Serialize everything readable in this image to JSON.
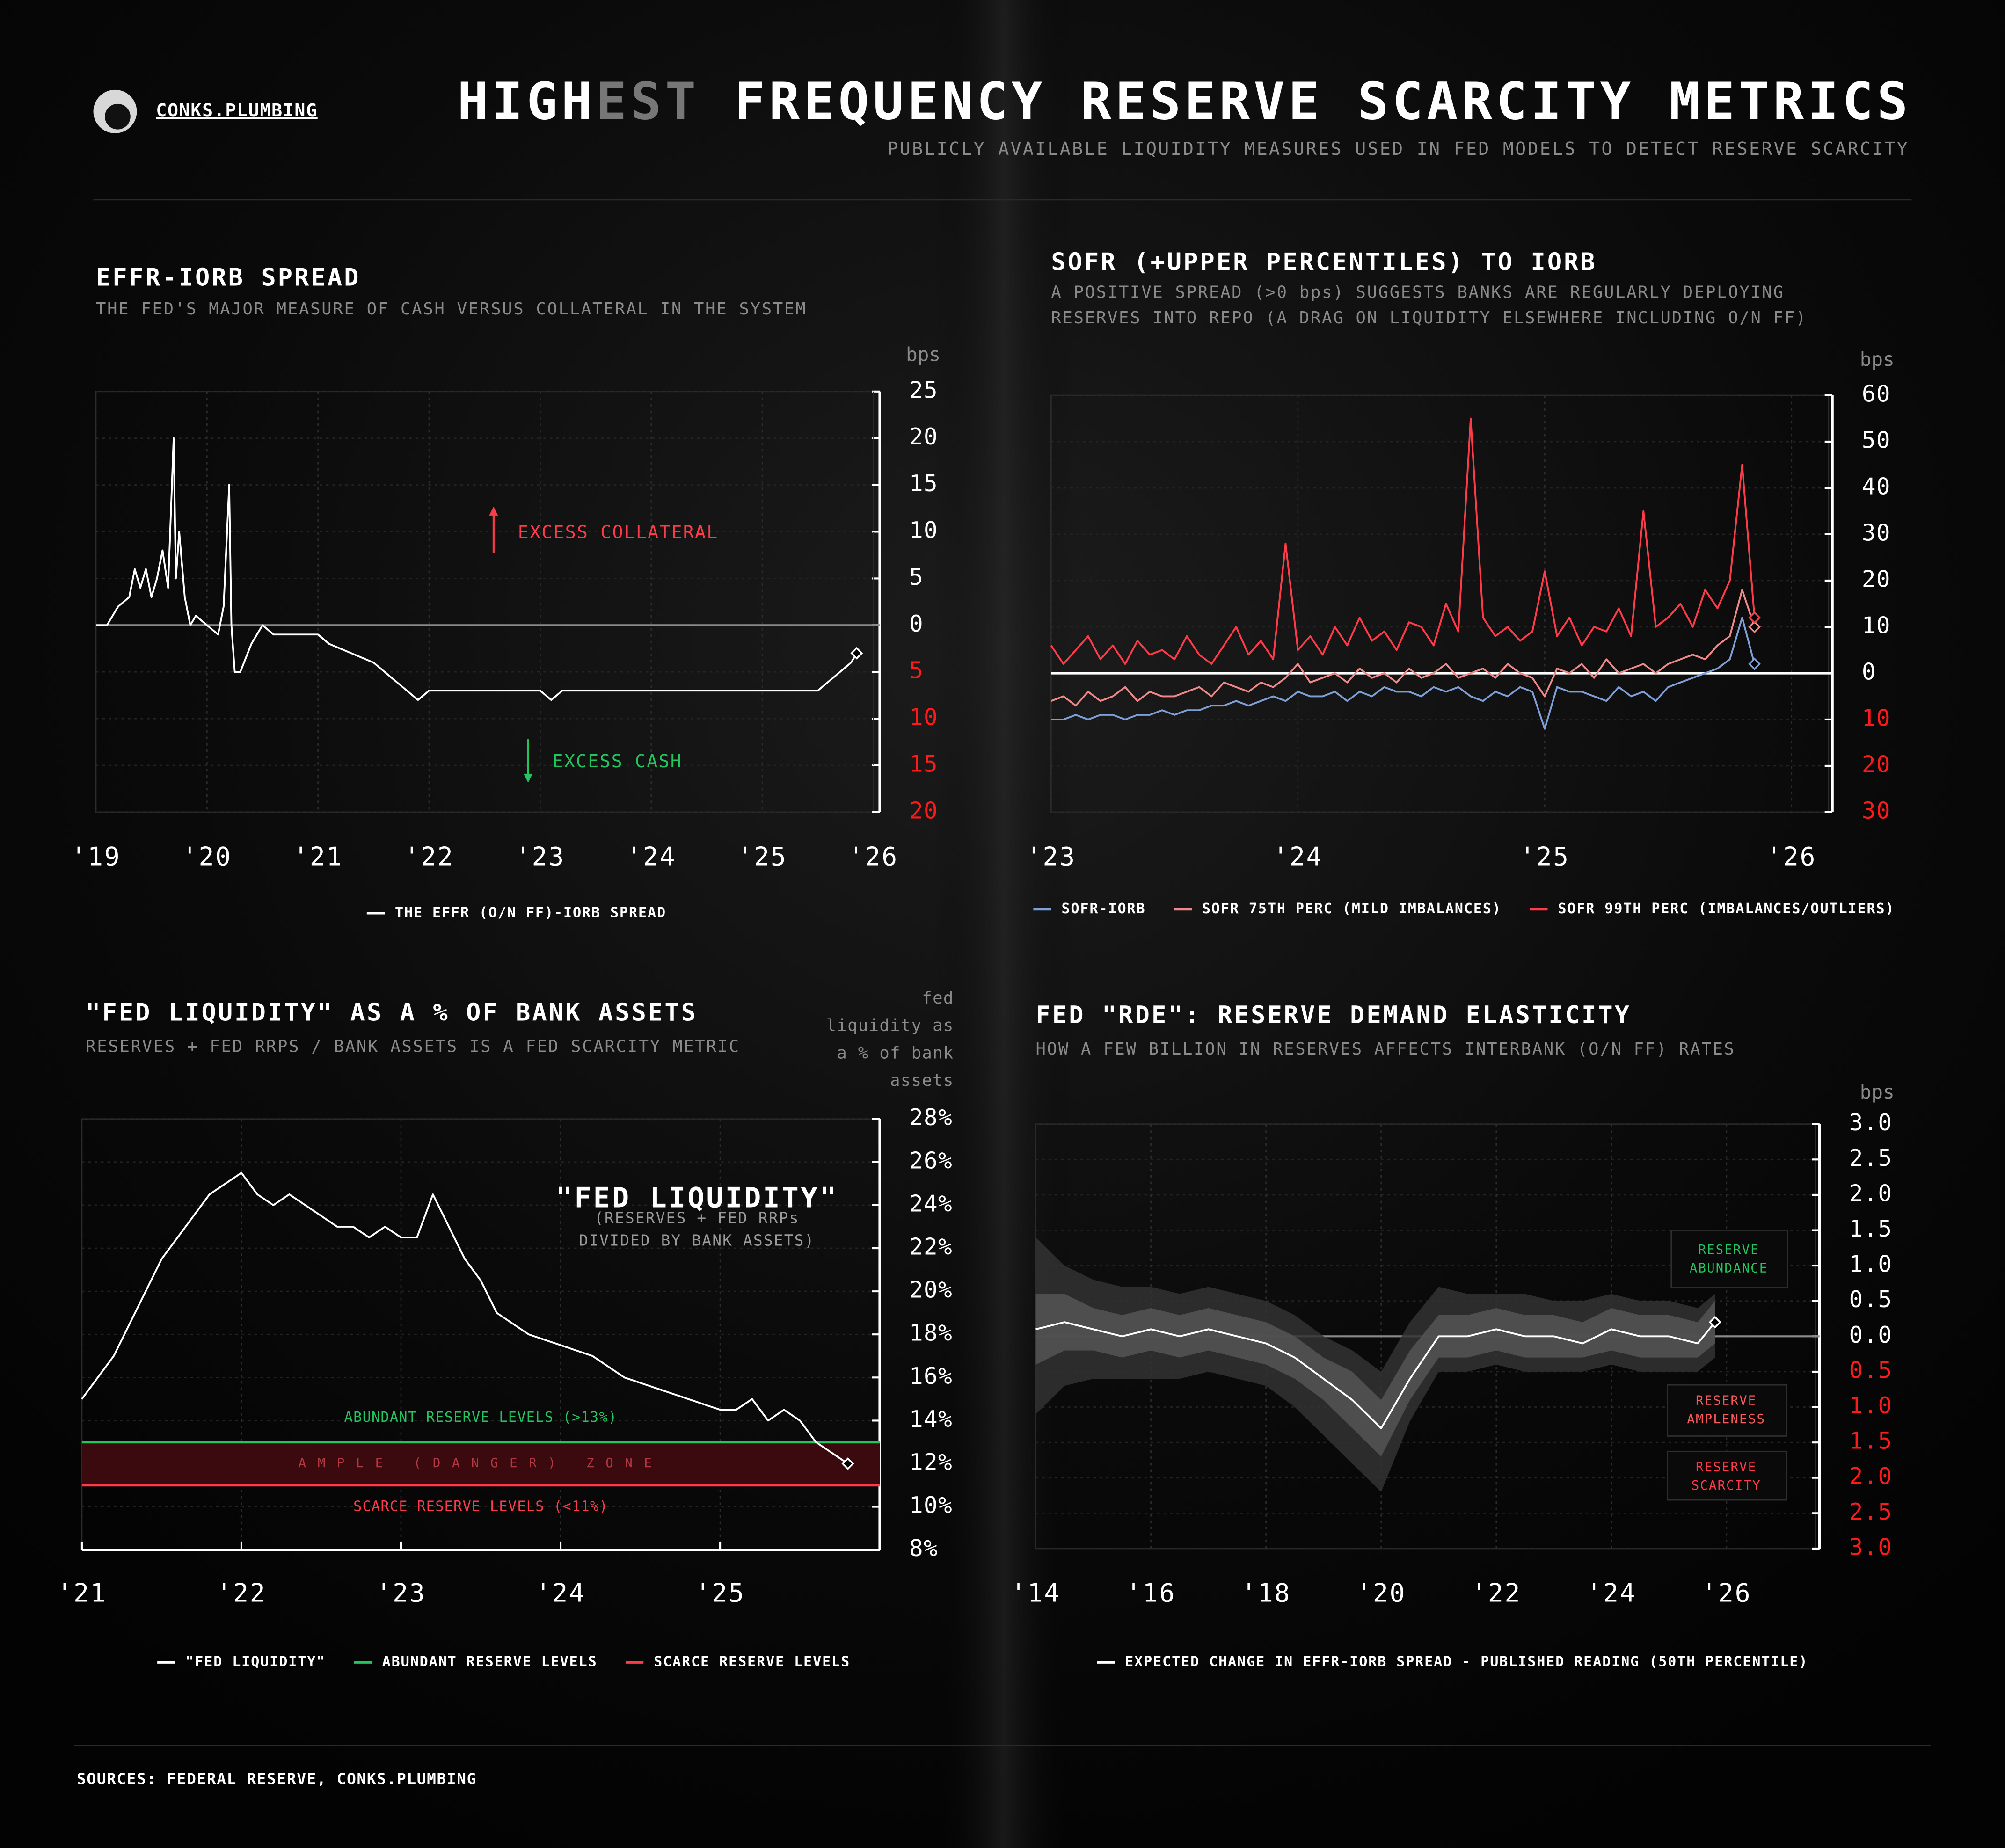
{
  "header": {
    "brand": "CONKS.PLUMBING",
    "title": [
      "HIGH",
      "EST",
      " FREQUENCY RESERVE SCARCITY METRICS"
    ],
    "title_colors": [
      "#ffffff",
      "#777777",
      "#ffffff"
    ],
    "subtitle": "PUBLICLY AVAILABLE LIQUIDITY MEASURES USED IN FED MODELS TO DETECT RESERVE SCARCITY"
  },
  "chart_data": [
    {
      "type": "line",
      "title": "EFFR-IORB SPREAD",
      "subtitle": [
        "THE FED'S MAJOR MEASURE OF CASH VERSUS COLLATERAL IN THE SYSTEM"
      ],
      "y_label": "bps",
      "x": [
        2019.0,
        2019.1,
        2019.2,
        2019.3,
        2019.35,
        2019.4,
        2019.45,
        2019.5,
        2019.55,
        2019.6,
        2019.65,
        2019.7,
        2019.72,
        2019.75,
        2019.8,
        2019.85,
        2019.9,
        2020.0,
        2020.1,
        2020.15,
        2020.2,
        2020.22,
        2020.25,
        2020.3,
        2020.4,
        2020.5,
        2020.6,
        2020.8,
        2021.0,
        2021.1,
        2021.3,
        2021.5,
        2021.6,
        2021.7,
        2021.8,
        2021.9,
        2022.0,
        2022.2,
        2022.5,
        2023.0,
        2023.1,
        2023.2,
        2023.5,
        2024.0,
        2024.5,
        2025.0,
        2025.5,
        2025.6,
        2025.7,
        2025.8,
        2025.85
      ],
      "series": [
        {
          "name": "THE EFFR (O/N FF)-IORB SPREAD",
          "color": "#ffffff",
          "values": [
            0,
            0,
            2,
            3,
            6,
            4,
            6,
            3,
            5,
            8,
            4,
            20,
            5,
            10,
            3,
            0,
            1,
            0,
            -1,
            2,
            15,
            0,
            -5,
            -5,
            -2,
            0,
            -1,
            -1,
            -1,
            -2,
            -3,
            -4,
            -5,
            -6,
            -7,
            -8,
            -7,
            -7,
            -7,
            -7,
            -8,
            -7,
            -7,
            -7,
            -7,
            -7,
            -7,
            -6,
            -5,
            -4,
            -3
          ]
        }
      ],
      "xlim": [
        2019,
        2026
      ],
      "ylim": [
        -20,
        25
      ],
      "xticks": [
        {
          "value": 2019,
          "label": "'19"
        },
        {
          "value": 2020,
          "label": "'20"
        },
        {
          "value": 2021,
          "label": "'21"
        },
        {
          "value": 2022,
          "label": "'22"
        },
        {
          "value": 2023,
          "label": "'23"
        },
        {
          "value": 2024,
          "label": "'24"
        },
        {
          "value": 2025,
          "label": "'25"
        },
        {
          "value": 2026,
          "label": "'26"
        }
      ],
      "yticks": [
        25,
        20,
        15,
        10,
        5,
        0,
        {
          "value": -5,
          "label": "5"
        },
        {
          "value": -10,
          "label": "10"
        },
        {
          "value": -15,
          "label": "15"
        },
        {
          "value": -20,
          "label": "20"
        }
      ],
      "negative_tick_color": "#ff1a1a",
      "zero_line_color": "#8a8a8a",
      "grid": true,
      "end_marker": true,
      "annotations": [
        {
          "text": [
            "EXCESS COLLATERAL"
          ],
          "color": "#ff3b4a"
        },
        {
          "text": [
            "EXCESS CASH"
          ],
          "color": "#22c55e"
        }
      ]
    },
    {
      "type": "line",
      "title": "SOFR (+UPPER PERCENTILES) TO IORB",
      "subtitle": [
        "A POSITIVE SPREAD (>0 bps) SUGGESTS BANKS ARE REGULARLY DEPLOYING",
        "RESERVES INTO REPO (A DRAG ON LIQUIDITY ELSEWHERE INCLUDING O/N FF)"
      ],
      "y_label": "bps",
      "x": [
        2023,
        2023.05,
        2023.1,
        2023.15,
        2023.2,
        2023.25,
        2023.3,
        2023.35,
        2023.4,
        2023.45,
        2023.5,
        2023.55,
        2023.6,
        2023.65,
        2023.7,
        2023.75,
        2023.8,
        2023.85,
        2023.9,
        2023.95,
        2024,
        2024.05,
        2024.1,
        2024.15,
        2024.2,
        2024.25,
        2024.3,
        2024.35,
        2024.4,
        2024.45,
        2024.5,
        2024.55,
        2024.6,
        2024.65,
        2024.7,
        2024.75,
        2024.8,
        2024.85,
        2024.9,
        2024.95,
        2025,
        2025.05,
        2025.1,
        2025.15,
        2025.2,
        2025.25,
        2025.3,
        2025.35,
        2025.4,
        2025.45,
        2025.5,
        2025.55,
        2025.6,
        2025.65,
        2025.7,
        2025.75,
        2025.8,
        2025.85
      ],
      "series": [
        {
          "name": "SOFR-IORB",
          "color": "#7f9fd8",
          "values": [
            -10,
            -10,
            -9,
            -10,
            -9,
            -9,
            -10,
            -9,
            -9,
            -8,
            -9,
            -8,
            -8,
            -7,
            -7,
            -6,
            -7,
            -6,
            -5,
            -6,
            -4,
            -5,
            -5,
            -4,
            -6,
            -4,
            -5,
            -3,
            -4,
            -4,
            -5,
            -3,
            -4,
            -3,
            -5,
            -6,
            -4,
            -5,
            -3,
            -4,
            -12,
            -3,
            -4,
            -4,
            -5,
            -6,
            -3,
            -5,
            -4,
            -6,
            -3,
            -2,
            -1,
            0,
            1,
            3,
            12,
            2
          ]
        },
        {
          "name": "SOFR 75TH PERC (MILD IMBALANCES)",
          "color": "#f08a8a",
          "values": [
            -6,
            -5,
            -7,
            -4,
            -6,
            -5,
            -3,
            -6,
            -4,
            -5,
            -5,
            -4,
            -3,
            -5,
            -2,
            -3,
            -4,
            -2,
            -3,
            -1,
            2,
            -2,
            -1,
            0,
            -2,
            1,
            -1,
            0,
            -2,
            1,
            -1,
            0,
            2,
            -1,
            0,
            1,
            -1,
            2,
            0,
            -1,
            -5,
            1,
            0,
            2,
            -1,
            3,
            0,
            1,
            2,
            0,
            2,
            3,
            4,
            3,
            6,
            8,
            18,
            10
          ]
        },
        {
          "name": "SOFR 99TH PERC (IMBALANCES/OUTLIERS)",
          "color": "#ff3b4a",
          "values": [
            6,
            2,
            5,
            8,
            3,
            6,
            2,
            7,
            4,
            5,
            3,
            8,
            4,
            2,
            6,
            10,
            4,
            7,
            3,
            28,
            5,
            8,
            4,
            10,
            6,
            12,
            7,
            9,
            5,
            11,
            10,
            6,
            15,
            9,
            55,
            12,
            8,
            10,
            7,
            9,
            22,
            8,
            12,
            6,
            10,
            9,
            14,
            8,
            35,
            10,
            12,
            15,
            10,
            18,
            14,
            20,
            45,
            12
          ]
        }
      ],
      "xlim": [
        2023,
        2026.15
      ],
      "ylim": [
        -30,
        60
      ],
      "xticks": [
        {
          "value": 2023,
          "label": "'23"
        },
        {
          "value": 2024,
          "label": "'24"
        },
        {
          "value": 2025,
          "label": "'25"
        },
        {
          "value": 2026,
          "label": "'26"
        }
      ],
      "yticks": [
        60,
        50,
        40,
        30,
        20,
        10,
        0,
        {
          "value": -10,
          "label": "10"
        },
        {
          "value": -20,
          "label": "20"
        },
        {
          "value": -30,
          "label": "30"
        }
      ],
      "negative_tick_color": "#ff1a1a",
      "zero_line_color": "#ffffff",
      "grid": true,
      "end_marker": true
    },
    {
      "type": "line",
      "title": "\"FED LIQUIDITY\" AS A % OF BANK ASSETS",
      "subtitle": [
        "RESERVES + FED RRPS / BANK ASSETS IS A FED SCARCITY METRIC"
      ],
      "y_label": [
        "fed",
        "liquidity as",
        "a % of bank",
        "assets"
      ],
      "x": [
        2021.0,
        2021.1,
        2021.2,
        2021.3,
        2021.4,
        2021.5,
        2021.6,
        2021.7,
        2021.8,
        2021.9,
        2022.0,
        2022.1,
        2022.2,
        2022.3,
        2022.4,
        2022.5,
        2022.6,
        2022.7,
        2022.8,
        2022.9,
        2023.0,
        2023.1,
        2023.2,
        2023.3,
        2023.4,
        2023.5,
        2023.6,
        2023.7,
        2023.8,
        2024.0,
        2024.2,
        2024.4,
        2024.6,
        2024.8,
        2025.0,
        2025.1,
        2025.2,
        2025.3,
        2025.4,
        2025.5,
        2025.6,
        2025.7,
        2025.8
      ],
      "series": [
        {
          "name": "\"FED LIQUIDITY\"",
          "color": "#ffffff",
          "values": [
            15,
            16,
            17,
            18.5,
            20,
            21.5,
            22.5,
            23.5,
            24.5,
            25,
            25.5,
            24.5,
            24,
            24.5,
            24,
            23.5,
            23,
            23,
            22.5,
            23,
            22.5,
            22.5,
            24.5,
            23,
            21.5,
            20.5,
            19,
            18.5,
            18,
            17.5,
            17,
            16,
            15.5,
            15,
            14.5,
            14.5,
            15,
            14,
            14.5,
            14,
            13,
            12.5,
            12
          ]
        }
      ],
      "hlines": [
        {
          "name": "ABUNDANT RESERVE LEVELS",
          "label": "ABUNDANT RESERVE LEVELS (>13%)",
          "value": 13,
          "color": "#22c55e"
        },
        {
          "name": "SCARCE RESERVE LEVELS",
          "label": "SCARCE RESERVE LEVELS (<11%)",
          "value": 11,
          "color": "#ff3b4a"
        }
      ],
      "zone_label": "AMPLE (DANGER) ZONE",
      "zone_color": "#3a0a0e",
      "xlim": [
        2021,
        2026
      ],
      "ylim": [
        8,
        28
      ],
      "xticks": [
        {
          "value": 2021,
          "label": "'21"
        },
        {
          "value": 2022,
          "label": "'22"
        },
        {
          "value": 2023,
          "label": "'23"
        },
        {
          "value": 2024,
          "label": "'24"
        },
        {
          "value": 2025,
          "label": "'25"
        }
      ],
      "yticks": [
        {
          "value": 28,
          "label": "28%"
        },
        {
          "value": 26,
          "label": "26%"
        },
        {
          "value": 24,
          "label": "24%"
        },
        {
          "value": 22,
          "label": "22%"
        },
        {
          "value": 20,
          "label": "20%"
        },
        {
          "value": 18,
          "label": "18%"
        },
        {
          "value": 16,
          "label": "16%"
        },
        {
          "value": 14,
          "label": "14%"
        },
        {
          "value": 12,
          "label": "12%"
        },
        {
          "value": 10,
          "label": "10%"
        },
        {
          "value": 8,
          "label": "8%"
        }
      ],
      "grid": true,
      "end_marker": true,
      "annotations": [
        {
          "text": [
            "\"FED LIQUIDITY\""
          ],
          "color": "#ffffff"
        },
        {
          "text": [
            "(RESERVES + FED RRPs",
            "DIVIDED BY BANK ASSETS)"
          ],
          "color": "#9a9a9a"
        }
      ]
    },
    {
      "type": "line",
      "title": "FED \"RDE\": RESERVE DEMAND ELASTICITY",
      "subtitle": [
        "HOW A FEW BILLION IN RESERVES AFFECTS INTERBANK (O/N FF) RATES"
      ],
      "y_label": "bps",
      "x": [
        2014,
        2014.5,
        2015,
        2015.5,
        2016,
        2016.5,
        2017,
        2017.5,
        2018,
        2018.5,
        2019,
        2019.5,
        2020,
        2020.5,
        2021,
        2021.5,
        2022,
        2022.5,
        2023,
        2023.5,
        2024,
        2024.5,
        2025,
        2025.5,
        2025.8
      ],
      "bands": [
        {
          "color": "#333333",
          "lower": [
            -1.1,
            -0.7,
            -0.6,
            -0.6,
            -0.6,
            -0.6,
            -0.5,
            -0.6,
            -0.7,
            -1.0,
            -1.4,
            -1.8,
            -2.2,
            -1.2,
            -0.5,
            -0.5,
            -0.4,
            -0.5,
            -0.5,
            -0.5,
            -0.4,
            -0.5,
            -0.5,
            -0.5,
            -0.3
          ],
          "upper": [
            1.4,
            1.0,
            0.8,
            0.7,
            0.7,
            0.6,
            0.7,
            0.6,
            0.5,
            0.3,
            0.0,
            -0.2,
            -0.5,
            0.2,
            0.7,
            0.6,
            0.6,
            0.6,
            0.5,
            0.5,
            0.6,
            0.5,
            0.5,
            0.4,
            0.6
          ]
        },
        {
          "color": "#555555",
          "lower": [
            -0.4,
            -0.2,
            -0.2,
            -0.3,
            -0.2,
            -0.3,
            -0.2,
            -0.3,
            -0.4,
            -0.6,
            -0.9,
            -1.3,
            -1.7,
            -0.9,
            -0.3,
            -0.3,
            -0.2,
            -0.3,
            -0.3,
            -0.3,
            -0.2,
            -0.3,
            -0.3,
            -0.3,
            -0.1
          ],
          "upper": [
            0.6,
            0.6,
            0.4,
            0.3,
            0.4,
            0.3,
            0.4,
            0.3,
            0.2,
            0.0,
            -0.3,
            -0.5,
            -0.9,
            -0.2,
            0.3,
            0.3,
            0.4,
            0.3,
            0.3,
            0.2,
            0.4,
            0.3,
            0.3,
            0.2,
            0.5
          ]
        }
      ],
      "series": [
        {
          "name": "EXPECTED CHANGE IN EFFR-IORB SPREAD - PUBLISHED READING (50TH PERCENTILE)",
          "color": "#ffffff",
          "values": [
            0.1,
            0.2,
            0.1,
            0.0,
            0.1,
            0.0,
            0.1,
            0.0,
            -0.1,
            -0.3,
            -0.6,
            -0.9,
            -1.3,
            -0.6,
            0.0,
            0.0,
            0.1,
            0.0,
            0.0,
            -0.1,
            0.1,
            0.0,
            0.0,
            -0.1,
            0.2
          ]
        }
      ],
      "xlim": [
        2014,
        2027.55
      ],
      "ylim": [
        -3,
        3
      ],
      "xticks": [
        {
          "value": 2014,
          "label": "'14"
        },
        {
          "value": 2016,
          "label": "'16"
        },
        {
          "value": 2018,
          "label": "'18"
        },
        {
          "value": 2020,
          "label": "'20"
        },
        {
          "value": 2022,
          "label": "'22"
        },
        {
          "value": 2024,
          "label": "'24"
        },
        {
          "value": 2026,
          "label": "'26"
        }
      ],
      "yticks": [
        {
          "value": 3,
          "label": "3.0"
        },
        {
          "value": 2.5,
          "label": "2.5"
        },
        {
          "value": 2,
          "label": "2.0"
        },
        {
          "value": 1.5,
          "label": "1.5"
        },
        {
          "value": 1,
          "label": "1.0"
        },
        {
          "value": 0.5,
          "label": "0.5"
        },
        {
          "value": 0,
          "label": "0.0"
        },
        {
          "value": -0.5,
          "label": "0.5"
        },
        {
          "value": -1,
          "label": "1.0"
        },
        {
          "value": -1.5,
          "label": "1.5"
        },
        {
          "value": -2,
          "label": "2.0"
        },
        {
          "value": -2.5,
          "label": "2.5"
        },
        {
          "value": -3,
          "label": "3.0"
        }
      ],
      "negative_tick_color": "#ff1a1a",
      "zero_line_color": "#8a8a8a",
      "grid": true,
      "end_marker": true,
      "annotations": [
        {
          "text": [
            "RESERVE",
            "ABUNDANCE"
          ],
          "color": "#22c55e"
        },
        {
          "text": [
            "RESERVE",
            "AMPLENESS"
          ],
          "color": "#ff5a5a"
        },
        {
          "text": [
            "RESERVE",
            "SCARCITY"
          ],
          "color": "#ff3b4a"
        }
      ]
    }
  ],
  "footer": {
    "sources": "SOURCES: FEDERAL RESERVE, CONKS.PLUMBING"
  }
}
